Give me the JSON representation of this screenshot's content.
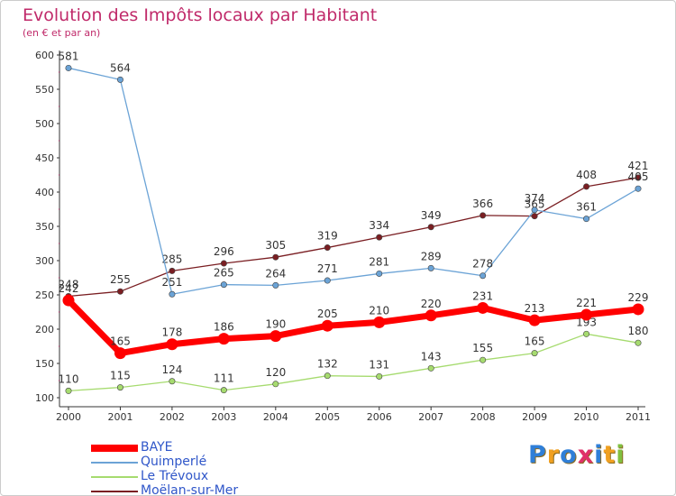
{
  "title": "Evolution des Impôts locaux par Habitant",
  "subtitle": "(en € et par an)",
  "logo": {
    "letters": [
      "P",
      "r",
      "o",
      "x",
      "i",
      "t",
      "i"
    ],
    "colors": [
      "#2f7fd8",
      "#f0a020",
      "#2f7fd8",
      "#e0306a",
      "#2f7fd8",
      "#f0a020",
      "#80c040"
    ]
  },
  "chart_data": {
    "type": "line",
    "x": [
      "2000",
      "2001",
      "2002",
      "2003",
      "2004",
      "2005",
      "2006",
      "2007",
      "2008",
      "2009",
      "2010",
      "2011"
    ],
    "ylim": [
      100,
      600
    ],
    "yticks": [
      "100",
      "150",
      "200",
      "250",
      "300",
      "350",
      "400",
      "450",
      "500",
      "550",
      "600"
    ],
    "grid": false,
    "legend_position": "bottom-left",
    "series": [
      {
        "name": "Moëlan-sur-Mer",
        "color": "#7a1e22",
        "values": [
          248,
          255,
          285,
          296,
          305,
          319,
          334,
          349,
          366,
          365,
          408,
          421
        ]
      },
      {
        "name": "Le Trévoux",
        "color": "#a6db6f",
        "values": [
          110,
          115,
          124,
          111,
          120,
          132,
          131,
          143,
          155,
          165,
          193,
          180
        ]
      },
      {
        "name": "Quimperlé",
        "color": "#6ba3d6",
        "values": [
          581,
          564,
          251,
          265,
          264,
          271,
          281,
          289,
          278,
          374,
          361,
          405
        ]
      },
      {
        "name": "BAYE",
        "color": "#ff0000",
        "values": [
          242,
          165,
          178,
          186,
          190,
          205,
          210,
          220,
          231,
          213,
          221,
          229
        ]
      }
    ],
    "legend_order": [
      "BAYE",
      "Quimperlé",
      "Le Trévoux",
      "Moëlan-sur-Mer"
    ]
  }
}
